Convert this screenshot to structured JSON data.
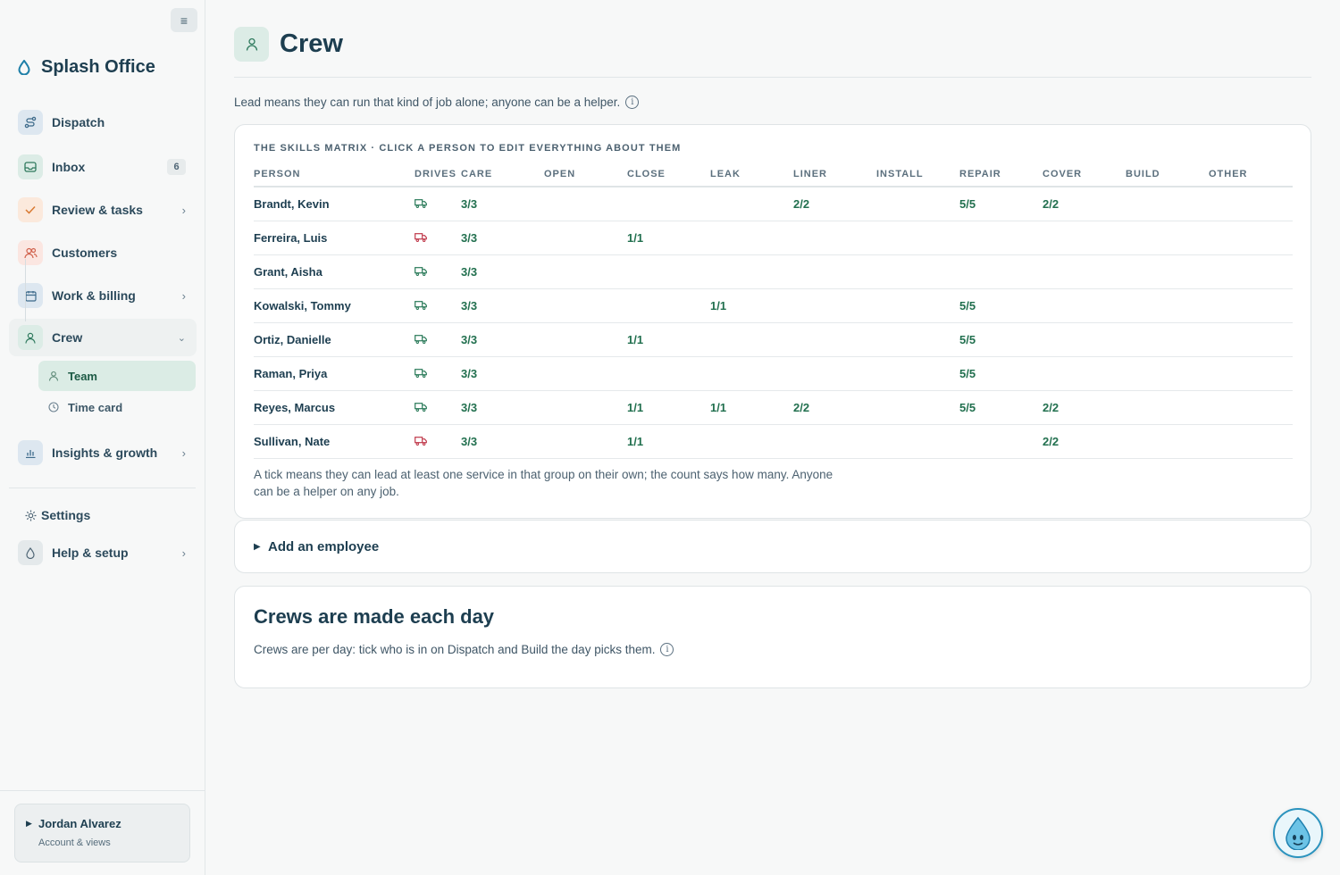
{
  "app": {
    "name": "Splash Office"
  },
  "sidebar": {
    "items": [
      {
        "label": "Dispatch",
        "icon": "route-icon",
        "color": "#dde7f0"
      },
      {
        "label": "Inbox",
        "icon": "inbox-icon",
        "badge": "6",
        "color": "#dcece6"
      },
      {
        "label": "Review & tasks",
        "icon": "check-icon",
        "color": "#fbe9dc"
      },
      {
        "label": "Customers",
        "icon": "users-icon",
        "color": "#fbe6e1"
      },
      {
        "label": "Work & billing",
        "icon": "calendar-icon",
        "color": "#dde7f0"
      },
      {
        "label": "Crew",
        "icon": "person-icon",
        "color": "#dcece6"
      },
      {
        "label": "Insights & growth",
        "icon": "chart-icon",
        "color": "#dde7f0"
      },
      {
        "label": "Settings",
        "icon": "gear-icon"
      },
      {
        "label": "Help & setup",
        "icon": "drop-icon",
        "color": "#e4e9eb"
      }
    ],
    "crew_sub": [
      {
        "label": "Team",
        "icon": "person-icon"
      },
      {
        "label": "Time card",
        "icon": "clock-icon"
      }
    ]
  },
  "account": {
    "name": "Jordan Alvarez",
    "subtitle": "Account & views"
  },
  "page": {
    "title": "Crew",
    "lead_note": "Lead means they can run that kind of job alone; anyone can be a helper."
  },
  "matrix": {
    "caption": "THE SKILLS MATRIX · CLICK A PERSON TO EDIT EVERYTHING ABOUT THEM",
    "columns": [
      "PERSON",
      "DRIVES",
      "CARE",
      "OPEN",
      "CLOSE",
      "LEAK",
      "LINER",
      "INSTALL",
      "REPAIR",
      "COVER",
      "BUILD",
      "OTHER"
    ],
    "rows": [
      {
        "person": "Brandt, Kevin",
        "drives": "green",
        "cells": [
          "3/3",
          "",
          "",
          "",
          "2/2",
          "",
          "5/5",
          "2/2",
          "",
          ""
        ]
      },
      {
        "person": "Ferreira, Luis",
        "drives": "red",
        "cells": [
          "3/3",
          "",
          "1/1",
          "",
          "",
          "",
          "",
          "",
          "",
          ""
        ]
      },
      {
        "person": "Grant, Aisha",
        "drives": "green",
        "cells": [
          "3/3",
          "",
          "",
          "",
          "",
          "",
          "",
          "",
          "",
          ""
        ]
      },
      {
        "person": "Kowalski, Tommy",
        "drives": "green",
        "cells": [
          "3/3",
          "",
          "",
          "1/1",
          "",
          "",
          "5/5",
          "",
          "",
          ""
        ]
      },
      {
        "person": "Ortiz, Danielle",
        "drives": "green",
        "cells": [
          "3/3",
          "",
          "1/1",
          "",
          "",
          "",
          "5/5",
          "",
          "",
          ""
        ]
      },
      {
        "person": "Raman, Priya",
        "drives": "green",
        "cells": [
          "3/3",
          "",
          "",
          "",
          "",
          "",
          "5/5",
          "",
          "",
          ""
        ]
      },
      {
        "person": "Reyes, Marcus",
        "drives": "green",
        "cells": [
          "3/3",
          "",
          "1/1",
          "1/1",
          "2/2",
          "",
          "5/5",
          "2/2",
          "",
          ""
        ]
      },
      {
        "person": "Sullivan, Nate",
        "drives": "red",
        "cells": [
          "3/3",
          "",
          "1/1",
          "",
          "",
          "",
          "",
          "2/2",
          "",
          ""
        ]
      }
    ],
    "footnote": "A tick means they can lead at least one service in that group on their own; the count says how many. Anyone can be a helper on any job."
  },
  "add_employee": {
    "label": "Add an employee"
  },
  "crews": {
    "title": "Crews are made each day",
    "body": "Crews are per day: tick who is in on Dispatch and Build the day picks them."
  },
  "colors": {
    "truck_green": "#2a7a59",
    "truck_red": "#c0394b",
    "accent": "#22704f"
  }
}
